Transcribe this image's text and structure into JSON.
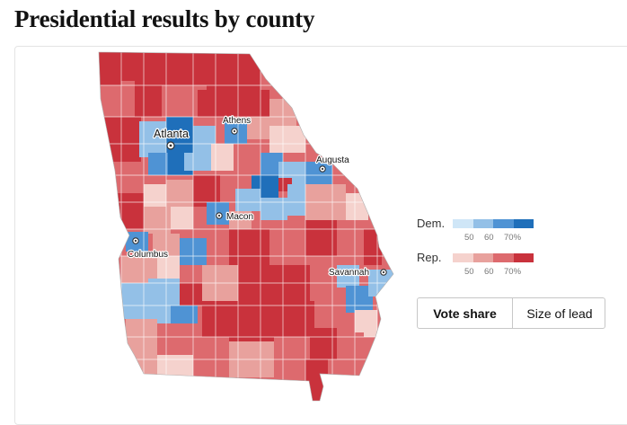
{
  "title": "Presidential results by county",
  "colors": {
    "dem": [
      "#cfe6f7",
      "#93c0e7",
      "#4f93d4",
      "#1f6fba"
    ],
    "rep": [
      "#f5d2cd",
      "#e8a19d",
      "#dd6a6e",
      "#c9323c"
    ]
  },
  "legend": [
    {
      "name": "Dem.",
      "ticks": [
        "50",
        "60",
        "70%"
      ]
    },
    {
      "name": "Rep.",
      "ticks": [
        "50",
        "60",
        "70%"
      ]
    }
  ],
  "cities": [
    {
      "name": "Atlanta"
    },
    {
      "name": "Athens"
    },
    {
      "name": "Augusta"
    },
    {
      "name": "Macon"
    },
    {
      "name": "Columbus"
    },
    {
      "name": "Savannah"
    }
  ],
  "toggle": {
    "vote_share": "Vote share",
    "size_of_lead": "Size of lead"
  }
}
